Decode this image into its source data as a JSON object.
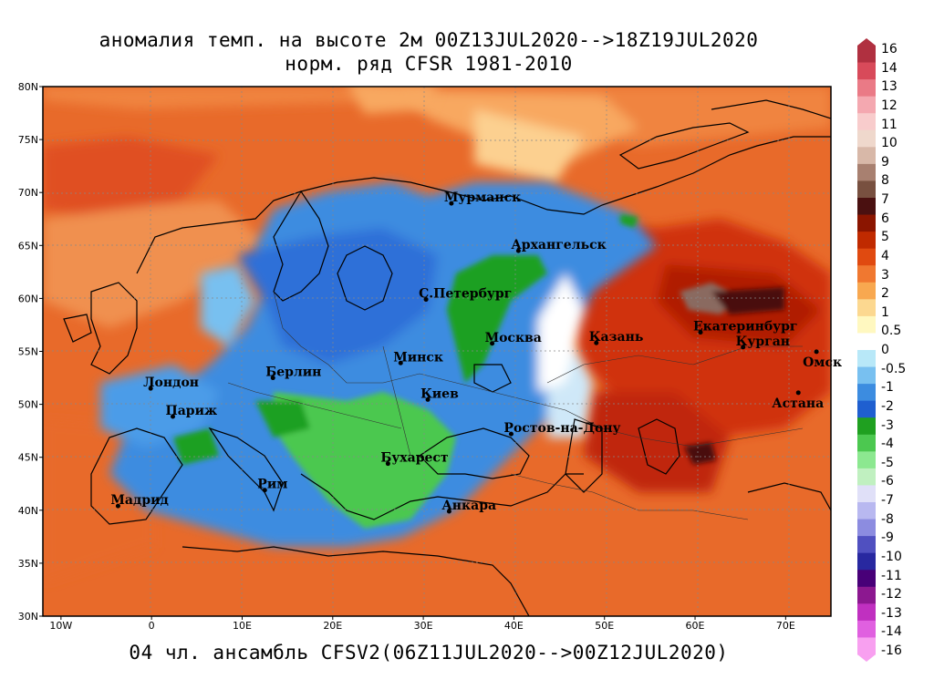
{
  "title": {
    "line1": "аномалия темп. на высоте 2м 00Z13JUL2020-->18Z19JUL2020",
    "line2": "норм. ряд CFSR 1981-2010"
  },
  "footer": "04 чл. ансамбль CFSV2(06Z11JUL2020-->00Z12JUL2020)",
  "axes": {
    "y_labels": [
      "80N",
      "75N",
      "70N",
      "65N",
      "60N",
      "55N",
      "50N",
      "45N",
      "40N",
      "35N",
      "30N"
    ],
    "x_labels": [
      "10W",
      "0",
      "10E",
      "20E",
      "30E",
      "40E",
      "50E",
      "60E",
      "70E"
    ],
    "lat_range": [
      30,
      80
    ],
    "lon_range": [
      -12,
      75
    ]
  },
  "cities": [
    {
      "name": "Мурманск",
      "lon": 33.1,
      "lat": 68.97
    },
    {
      "name": "Архангельск",
      "lon": 40.5,
      "lat": 64.5
    },
    {
      "name": "С.Петербург",
      "lon": 30.3,
      "lat": 59.9
    },
    {
      "name": "Москва",
      "lon": 37.6,
      "lat": 55.75
    },
    {
      "name": "Казань",
      "lon": 49.1,
      "lat": 55.8
    },
    {
      "name": "Екатеринбург",
      "lon": 60.6,
      "lat": 56.8
    },
    {
      "name": "Курган",
      "lon": 65.3,
      "lat": 55.4
    },
    {
      "name": "Омск",
      "lon": 73.4,
      "lat": 54.97
    },
    {
      "name": "Астана",
      "lon": 71.4,
      "lat": 51.1
    },
    {
      "name": "Минск",
      "lon": 27.5,
      "lat": 53.9
    },
    {
      "name": "Берлин",
      "lon": 13.4,
      "lat": 52.5
    },
    {
      "name": "Лондон",
      "lon": -0.1,
      "lat": 51.5
    },
    {
      "name": "Париж",
      "lon": 2.35,
      "lat": 48.85
    },
    {
      "name": "Киев",
      "lon": 30.5,
      "lat": 50.45
    },
    {
      "name": "Ростов-на-Дону",
      "lon": 39.7,
      "lat": 47.2
    },
    {
      "name": "Бухарест",
      "lon": 26.1,
      "lat": 44.4
    },
    {
      "name": "Рим",
      "lon": 12.5,
      "lat": 41.9
    },
    {
      "name": "Мадрид",
      "lon": -3.7,
      "lat": 40.4
    },
    {
      "name": "Анкара",
      "lon": 32.85,
      "lat": 39.9
    }
  ],
  "colorbar": {
    "labels": [
      "16",
      "14",
      "13",
      "12",
      "11",
      "10",
      "9",
      "8",
      "7",
      "6",
      "5",
      "4",
      "3",
      "2",
      "1",
      "0.5",
      "0",
      "-0.5",
      "-1",
      "-2",
      "-3",
      "-4",
      "-5",
      "-6",
      "-7",
      "-8",
      "-9",
      "-10",
      "-11",
      "-12",
      "-13",
      "-14",
      "-16"
    ],
    "colors": [
      "#b03040",
      "#d84a5a",
      "#ea7a86",
      "#f4a8b0",
      "#f8cccc",
      "#efd8cc",
      "#d8b8a8",
      "#a88070",
      "#785040",
      "#4a1010",
      "#8b1500",
      "#c02a00",
      "#e04a10",
      "#f07830",
      "#f8a850",
      "#fcd890",
      "#fff8c0",
      "#ffffff",
      "#b8e8f8",
      "#78c0f0",
      "#3c8ce0",
      "#1f5fd0",
      "#1fa020",
      "#4cc850",
      "#8ce890",
      "#c0f0c0",
      "#e0e0f8",
      "#b8b8f0",
      "#8c8ce0",
      "#5050c0",
      "#2828a0",
      "#480078",
      "#8c1890",
      "#c030c0",
      "#e060e0",
      "#f8a0f0"
    ]
  },
  "legend_colors": {
    "ocean_warm": "#e86a2a",
    "cold": "#3c8ce0",
    "very_cold": "#1fa020",
    "hot": "#c02a00"
  }
}
